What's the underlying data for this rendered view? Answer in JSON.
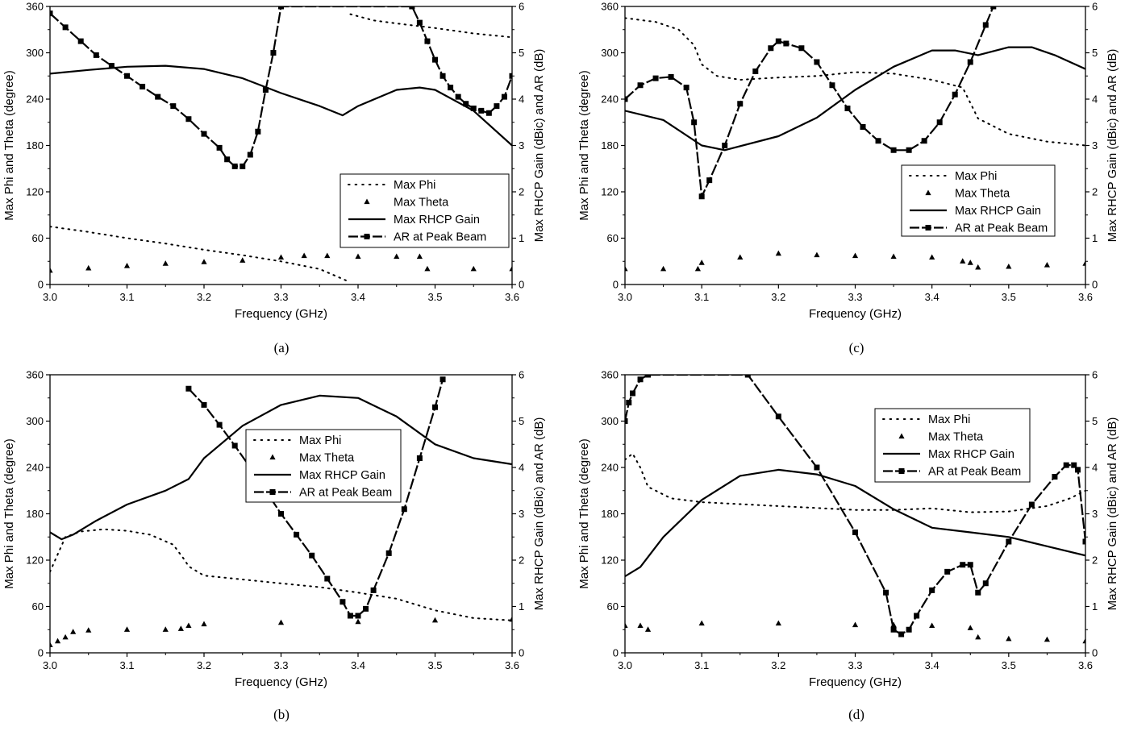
{
  "chart_data": [
    {
      "panel": "(a)",
      "type": "line",
      "xlabel": "Frequency (GHz)",
      "ylabel": "Max Phi and Theta (degree)",
      "y2label": "Max RHCP Gain (dBic) and AR (dB)",
      "xlim": [
        3.0,
        3.6
      ],
      "ylim": [
        0,
        360
      ],
      "y2lim": [
        0,
        6
      ],
      "xticks": [
        "3.0",
        "3.1",
        "3.2",
        "3.3",
        "3.4",
        "3.5",
        "3.6"
      ],
      "yticks": [
        "0",
        "60",
        "120",
        "180",
        "240",
        "300",
        "360"
      ],
      "y2ticks": [
        "0",
        "1",
        "2",
        "3",
        "4",
        "5",
        "6"
      ],
      "legend": {
        "position": "lower-right",
        "entries": [
          "Max Phi",
          "Max Theta",
          "Max RHCP Gain",
          "AR at Peak Beam"
        ]
      },
      "series": [
        {
          "name": "Max Phi",
          "axis": "left",
          "style": "dotted",
          "x": [
            3.0,
            3.05,
            3.1,
            3.15,
            3.2,
            3.25,
            3.3,
            3.35,
            3.385,
            3.385,
            3.39,
            3.42,
            3.45,
            3.5,
            3.55,
            3.6
          ],
          "y": [
            75,
            68,
            60,
            53,
            45,
            38,
            30,
            20,
            5,
            null,
            350,
            342,
            338,
            332,
            325,
            320
          ]
        },
        {
          "name": "Max Theta",
          "axis": "left",
          "style": "triangle",
          "x": [
            3.0,
            3.05,
            3.1,
            3.15,
            3.2,
            3.25,
            3.3,
            3.33,
            3.36,
            3.4,
            3.45,
            3.48,
            3.49,
            3.55,
            3.6
          ],
          "y": [
            18,
            21,
            24,
            27,
            29,
            31,
            35,
            37,
            37,
            36,
            36,
            36,
            20,
            20,
            20
          ]
        },
        {
          "name": "Max RHCP Gain",
          "axis": "right",
          "style": "solid",
          "x": [
            3.0,
            3.05,
            3.1,
            3.15,
            3.2,
            3.25,
            3.3,
            3.35,
            3.38,
            3.4,
            3.45,
            3.48,
            3.5,
            3.55,
            3.6
          ],
          "y": [
            4.55,
            4.63,
            4.7,
            4.72,
            4.65,
            4.45,
            4.13,
            3.85,
            3.65,
            3.85,
            4.2,
            4.25,
            4.2,
            3.75,
            3.0
          ]
        },
        {
          "name": "AR at Peak Beam",
          "axis": "right",
          "style": "line-square",
          "x": [
            3.0,
            3.02,
            3.04,
            3.06,
            3.08,
            3.1,
            3.12,
            3.14,
            3.16,
            3.18,
            3.2,
            3.22,
            3.23,
            3.24,
            3.25,
            3.26,
            3.27,
            3.28,
            3.29,
            3.3,
            3.47,
            3.48,
            3.49,
            3.5,
            3.51,
            3.52,
            3.53,
            3.54,
            3.55,
            3.56,
            3.57,
            3.58,
            3.59,
            3.6
          ],
          "y": [
            5.85,
            5.55,
            5.25,
            4.95,
            4.72,
            4.5,
            4.27,
            4.05,
            3.85,
            3.57,
            3.25,
            2.95,
            2.7,
            2.55,
            2.55,
            2.8,
            3.3,
            4.2,
            5.0,
            6.0,
            6.0,
            5.65,
            5.25,
            4.85,
            4.5,
            4.25,
            4.05,
            3.9,
            3.8,
            3.75,
            3.7,
            3.85,
            4.05,
            4.5
          ]
        }
      ]
    },
    {
      "panel": "(b)",
      "type": "line",
      "xlabel": "Frequency (GHz)",
      "ylabel": "Max Phi and Theta (degree)",
      "y2label": "Max RHCP Gain (dBic) and AR (dB)",
      "xlim": [
        3.0,
        3.6
      ],
      "ylim": [
        0,
        360
      ],
      "y2lim": [
        0,
        6
      ],
      "xticks": [
        "3.0",
        "3.1",
        "3.2",
        "3.3",
        "3.4",
        "3.5",
        "3.6"
      ],
      "yticks": [
        "0",
        "60",
        "120",
        "180",
        "240",
        "300",
        "360"
      ],
      "y2ticks": [
        "0",
        "1",
        "2",
        "3",
        "4",
        "5",
        "6"
      ],
      "legend": {
        "position": "center-right",
        "entries": [
          "Max Phi",
          "Max Theta",
          "Max RHCP Gain",
          "AR at Peak Beam"
        ]
      },
      "series": [
        {
          "name": "Max Phi",
          "axis": "left",
          "style": "dotted",
          "x": [
            3.0,
            3.02,
            3.04,
            3.07,
            3.1,
            3.13,
            3.16,
            3.175,
            3.18,
            3.2,
            3.25,
            3.3,
            3.35,
            3.4,
            3.45,
            3.5,
            3.55,
            3.6
          ],
          "y": [
            105,
            150,
            157,
            160,
            158,
            153,
            140,
            120,
            112,
            100,
            95,
            90,
            85,
            78,
            70,
            55,
            45,
            42
          ]
        },
        {
          "name": "Max Theta",
          "axis": "left",
          "style": "triangle",
          "x": [
            3.0,
            3.01,
            3.02,
            3.03,
            3.05,
            3.1,
            3.15,
            3.17,
            3.18,
            3.2,
            3.3,
            3.4,
            3.5,
            3.6
          ],
          "y": [
            10,
            15,
            20,
            27,
            29,
            30,
            30,
            31,
            35,
            37,
            39,
            40,
            42,
            43
          ]
        },
        {
          "name": "Max RHCP Gain",
          "axis": "right",
          "style": "solid",
          "x": [
            3.0,
            3.015,
            3.03,
            3.06,
            3.1,
            3.15,
            3.18,
            3.2,
            3.25,
            3.3,
            3.35,
            3.4,
            3.45,
            3.5,
            3.55,
            3.6
          ],
          "y": [
            2.6,
            2.45,
            2.55,
            2.85,
            3.2,
            3.5,
            3.75,
            4.2,
            4.9,
            5.35,
            5.55,
            5.5,
            5.1,
            4.5,
            4.2,
            4.07
          ]
        },
        {
          "name": "AR at Peak Beam",
          "axis": "right",
          "style": "line-square",
          "x": [
            3.18,
            3.2,
            3.22,
            3.24,
            3.26,
            3.28,
            3.3,
            3.32,
            3.34,
            3.36,
            3.38,
            3.39,
            3.4,
            3.41,
            3.42,
            3.44,
            3.46,
            3.48,
            3.5,
            3.51
          ],
          "y": [
            5.7,
            5.35,
            4.92,
            4.47,
            4.0,
            3.5,
            3.0,
            2.55,
            2.1,
            1.6,
            1.1,
            0.8,
            0.8,
            0.95,
            1.35,
            2.15,
            3.1,
            4.2,
            5.3,
            5.9
          ]
        }
      ]
    },
    {
      "panel": "(c)",
      "type": "line",
      "xlabel": "Frequency (GHz)",
      "ylabel": "Max Phi and Theta (degree)",
      "y2label": "Max RHCP Gain (dBic) and AR (dB)",
      "xlim": [
        3.0,
        3.6
      ],
      "ylim": [
        0,
        360
      ],
      "y2lim": [
        0,
        6
      ],
      "xticks": [
        "3.0",
        "3.1",
        "3.2",
        "3.3",
        "3.4",
        "3.5",
        "3.6"
      ],
      "yticks": [
        "0",
        "60",
        "120",
        "180",
        "240",
        "300",
        "360"
      ],
      "y2ticks": [
        "0",
        "1",
        "2",
        "3",
        "4",
        "5",
        "6"
      ],
      "legend": {
        "position": "center-right",
        "entries": [
          "Max Phi",
          "Max Theta",
          "Max RHCP Gain",
          "AR at Peak Beam"
        ]
      },
      "series": [
        {
          "name": "Max Phi",
          "axis": "left",
          "style": "dotted",
          "x": [
            3.0,
            3.04,
            3.07,
            3.09,
            3.1,
            3.12,
            3.15,
            3.2,
            3.25,
            3.3,
            3.35,
            3.4,
            3.44,
            3.45,
            3.46,
            3.5,
            3.55,
            3.6
          ],
          "y": [
            345,
            340,
            330,
            310,
            285,
            270,
            265,
            268,
            270,
            275,
            273,
            265,
            255,
            235,
            215,
            195,
            185,
            180
          ]
        },
        {
          "name": "Max Theta",
          "axis": "left",
          "style": "triangle",
          "x": [
            3.0,
            3.05,
            3.095,
            3.1,
            3.15,
            3.2,
            3.25,
            3.3,
            3.35,
            3.4,
            3.44,
            3.45,
            3.46,
            3.5,
            3.55,
            3.6
          ],
          "y": [
            20,
            20,
            20,
            28,
            35,
            40,
            38,
            37,
            36,
            35,
            30,
            28,
            22,
            23,
            25,
            27
          ]
        },
        {
          "name": "Max RHCP Gain",
          "axis": "right",
          "style": "solid",
          "x": [
            3.0,
            3.05,
            3.1,
            3.13,
            3.2,
            3.25,
            3.3,
            3.35,
            3.4,
            3.43,
            3.46,
            3.5,
            3.53,
            3.56,
            3.6
          ],
          "y": [
            3.75,
            3.55,
            3.0,
            2.9,
            3.2,
            3.6,
            4.2,
            4.7,
            5.05,
            5.05,
            4.95,
            5.12,
            5.12,
            4.95,
            4.65
          ]
        },
        {
          "name": "AR at Peak Beam",
          "axis": "right",
          "style": "line-square",
          "x": [
            3.0,
            3.02,
            3.04,
            3.06,
            3.08,
            3.09,
            3.1,
            3.11,
            3.13,
            3.15,
            3.17,
            3.19,
            3.2,
            3.21,
            3.23,
            3.25,
            3.27,
            3.29,
            3.31,
            3.33,
            3.35,
            3.37,
            3.39,
            3.41,
            3.43,
            3.45,
            3.47,
            3.48
          ],
          "y": [
            4.0,
            4.3,
            4.45,
            4.48,
            4.25,
            3.5,
            1.9,
            2.25,
            3.0,
            3.9,
            4.6,
            5.1,
            5.25,
            5.2,
            5.1,
            4.8,
            4.3,
            3.8,
            3.4,
            3.1,
            2.9,
            2.9,
            3.1,
            3.5,
            4.1,
            4.8,
            5.6,
            6.0
          ]
        }
      ]
    },
    {
      "panel": "(d)",
      "type": "line",
      "xlabel": "Frequency (GHz)",
      "ylabel": "Max Phi and Theta (degree)",
      "y2label": "Max RHCP Gain (dBic) and AR (dB)",
      "xlim": [
        3.0,
        3.6
      ],
      "ylim": [
        0,
        360
      ],
      "y2lim": [
        0,
        6
      ],
      "xticks": [
        "3.0",
        "3.1",
        "3.2",
        "3.3",
        "3.4",
        "3.5",
        "3.6"
      ],
      "yticks": [
        "0",
        "60",
        "120",
        "180",
        "240",
        "300",
        "360"
      ],
      "y2ticks": [
        "0",
        "1",
        "2",
        "3",
        "4",
        "5",
        "6"
      ],
      "legend": {
        "position": "top-right",
        "entries": [
          "Max Phi",
          "Max Theta",
          "Max RHCP Gain",
          "AR at Peak Beam"
        ]
      },
      "series": [
        {
          "name": "Max Phi",
          "axis": "left",
          "style": "dotted",
          "x": [
            3.0,
            3.01,
            3.02,
            3.03,
            3.06,
            3.1,
            3.2,
            3.3,
            3.35,
            3.4,
            3.45,
            3.5,
            3.55,
            3.58,
            3.6
          ],
          "y": [
            250,
            258,
            240,
            215,
            200,
            195,
            190,
            185,
            185,
            187,
            182,
            183,
            190,
            200,
            210
          ]
        },
        {
          "name": "Max Theta",
          "axis": "left",
          "style": "triangle",
          "x": [
            3.0,
            3.02,
            3.03,
            3.1,
            3.2,
            3.3,
            3.35,
            3.4,
            3.45,
            3.46,
            3.5,
            3.55,
            3.6
          ],
          "y": [
            35,
            35,
            30,
            38,
            38,
            36,
            36,
            35,
            32,
            20,
            18,
            17,
            15
          ]
        },
        {
          "name": "Max RHCP Gain",
          "axis": "right",
          "style": "solid",
          "x": [
            3.0,
            3.02,
            3.05,
            3.1,
            3.15,
            3.2,
            3.25,
            3.3,
            3.35,
            3.4,
            3.45,
            3.5,
            3.55,
            3.6
          ],
          "y": [
            1.65,
            1.85,
            2.5,
            3.3,
            3.82,
            3.95,
            3.85,
            3.6,
            3.1,
            2.7,
            2.6,
            2.5,
            2.3,
            2.1
          ]
        },
        {
          "name": "AR at Peak Beam",
          "axis": "right",
          "style": "line-square",
          "x": [
            3.0,
            3.005,
            3.01,
            3.02,
            3.03,
            3.16,
            3.2,
            3.25,
            3.3,
            3.34,
            3.35,
            3.36,
            3.37,
            3.38,
            3.4,
            3.42,
            3.44,
            3.45,
            3.46,
            3.47,
            3.5,
            3.53,
            3.56,
            3.575,
            3.585,
            3.59,
            3.6
          ],
          "y": [
            5.0,
            5.4,
            5.6,
            5.9,
            6.0,
            6.0,
            5.1,
            4.0,
            2.6,
            1.3,
            0.5,
            0.4,
            0.5,
            0.8,
            1.35,
            1.75,
            1.9,
            1.9,
            1.3,
            1.5,
            2.4,
            3.2,
            3.8,
            4.05,
            4.05,
            3.95,
            2.4
          ]
        }
      ]
    }
  ]
}
